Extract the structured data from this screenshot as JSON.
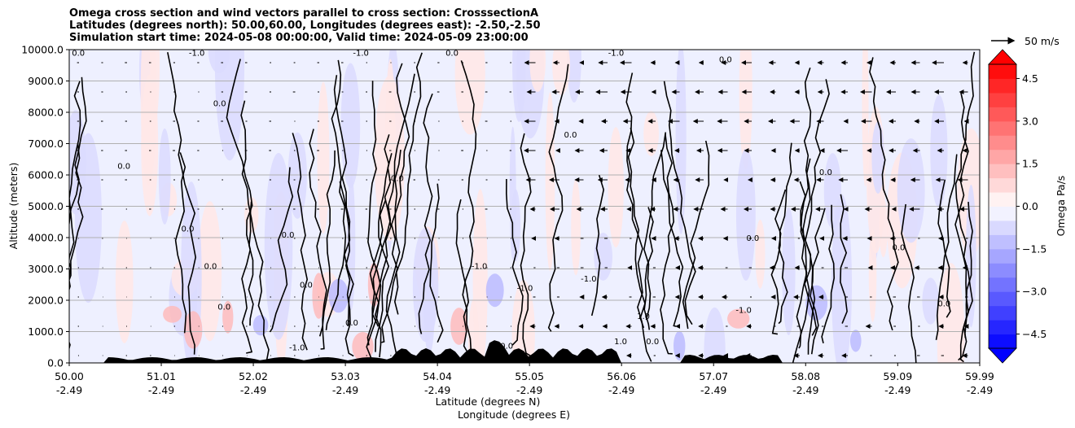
{
  "title": {
    "line1": "Omega cross section and wind vectors parallel to cross section: CrosssectionA",
    "line2": "Latitudes (degrees north): 50.00,60.00, Longitudes (degrees east): -2.50,-2.50",
    "line3": "Simulation start time: 2024-05-08 00:00:00, Valid time: 2024-05-09 23:00:00"
  },
  "reference_vector_label": "50 m/s",
  "colorbar_label": "Omega Pa/s",
  "colors": {
    "positive_max": "#ff0000",
    "negative_max": "#0000ff",
    "neutral": "#ffffff",
    "terrain": "#000000",
    "grid": "#b0b0b0"
  },
  "chart_data": {
    "type": "heatmap",
    "title": "Omega cross section and wind vectors parallel to cross section: CrosssectionA",
    "ylabel": "Altitude (meters)",
    "xlabel_line1": "Latitude (degrees N)",
    "xlabel_line2": "Longitude (degrees E)",
    "x_ticks": [
      {
        "lat": "50.00",
        "lon": "-2.49",
        "v": 50.0
      },
      {
        "lat": "51.01",
        "lon": "-2.49",
        "v": 51.01
      },
      {
        "lat": "52.02",
        "lon": "-2.49",
        "v": 52.02
      },
      {
        "lat": "53.03",
        "lon": "-2.49",
        "v": 53.03
      },
      {
        "lat": "54.04",
        "lon": "-2.49",
        "v": 54.04
      },
      {
        "lat": "55.05",
        "lon": "-2.49",
        "v": 55.05
      },
      {
        "lat": "56.06",
        "lon": "-2.49",
        "v": 56.06
      },
      {
        "lat": "57.07",
        "lon": "-2.49",
        "v": 57.07
      },
      {
        "lat": "58.08",
        "lon": "-2.49",
        "v": 58.08
      },
      {
        "lat": "59.09",
        "lon": "-2.49",
        "v": 59.09
      },
      {
        "lat": "59.99",
        "lon": "-2.49",
        "v": 59.99
      }
    ],
    "xlim": [
      50.0,
      59.99
    ],
    "y_ticks": [
      {
        "label": "0.0",
        "v": 0
      },
      {
        "label": "1000.0",
        "v": 1000
      },
      {
        "label": "2000.0",
        "v": 2000
      },
      {
        "label": "3000.0",
        "v": 3000
      },
      {
        "label": "4000.0",
        "v": 4000
      },
      {
        "label": "5000.0",
        "v": 5000
      },
      {
        "label": "6000.0",
        "v": 6000
      },
      {
        "label": "7000.0",
        "v": 7000
      },
      {
        "label": "8000.0",
        "v": 8000
      },
      {
        "label": "9000.0",
        "v": 9000
      },
      {
        "label": "10000.0",
        "v": 10000
      }
    ],
    "ylim": [
      0,
      10000
    ],
    "grid": "horizontal",
    "colorbar": {
      "range": [
        -5.0,
        5.0
      ],
      "step": 0.5,
      "extend": "both",
      "ticks": [
        "4.5",
        "3.0",
        "1.5",
        "0.0",
        "−1.5",
        "−3.0",
        "−4.5"
      ],
      "tick_values": [
        4.5,
        3.0,
        1.5,
        0.0,
        -1.5,
        -3.0,
        -4.5
      ]
    },
    "contour_labels": [
      {
        "text": "0.0",
        "x": 50.1,
        "y": 9800
      },
      {
        "text": "0.0",
        "x": 50.6,
        "y": 6200
      },
      {
        "text": "0.0",
        "x": 51.3,
        "y": 4200
      },
      {
        "text": "0.0",
        "x": 51.65,
        "y": 8200
      },
      {
        "text": "0.0",
        "x": 51.55,
        "y": 3000
      },
      {
        "text": "0.0",
        "x": 51.7,
        "y": 1700
      },
      {
        "text": "0.0",
        "x": 52.4,
        "y": 4000
      },
      {
        "text": "0.0",
        "x": 52.6,
        "y": 2400
      },
      {
        "text": "0.0",
        "x": 53.1,
        "y": 1200
      },
      {
        "text": "0.0",
        "x": 53.6,
        "y": 5800
      },
      {
        "text": "0.0",
        "x": 54.2,
        "y": 9800
      },
      {
        "text": "0.0",
        "x": 54.8,
        "y": 450
      },
      {
        "text": "0.0",
        "x": 55.5,
        "y": 7200
      },
      {
        "text": "0.0",
        "x": 56.4,
        "y": 600
      },
      {
        "text": "0.0",
        "x": 57.2,
        "y": 9600
      },
      {
        "text": "0.0",
        "x": 57.5,
        "y": 3900
      },
      {
        "text": "0.0",
        "x": 58.3,
        "y": 6000
      },
      {
        "text": "0.0",
        "x": 59.1,
        "y": 3600
      },
      {
        "text": "0.0",
        "x": 59.6,
        "y": 1800
      },
      {
        "text": "-1.0",
        "x": 51.4,
        "y": 9800
      },
      {
        "text": "-1.0",
        "x": 53.2,
        "y": 9800
      },
      {
        "text": "-1.0",
        "x": 54.5,
        "y": 3000
      },
      {
        "text": "-1.0",
        "x": 55.0,
        "y": 2300
      },
      {
        "text": "-1.0",
        "x": 55.7,
        "y": 2600
      },
      {
        "text": "-1.0",
        "x": 56.0,
        "y": 9800
      },
      {
        "text": "-1.0",
        "x": 57.4,
        "y": 1600
      },
      {
        "text": "-1.0",
        "x": 52.5,
        "y": 400
      },
      {
        "text": "1.0",
        "x": 56.3,
        "y": 1400
      },
      {
        "text": "1.0",
        "x": 56.05,
        "y": 600
      }
    ]
  }
}
